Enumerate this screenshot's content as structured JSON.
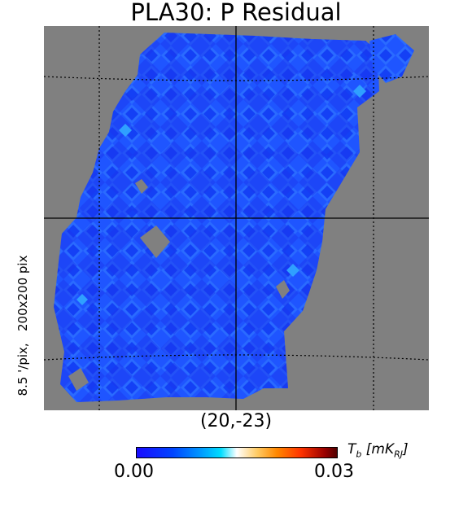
{
  "title": "PLA30: P Residual",
  "side_label": "8.5 '/pix,   200x200 pix",
  "center_coord": "(20,-23)",
  "colorbar": {
    "min_label": "0.00",
    "max_label": "0.03",
    "unit_prefix": "T",
    "unit_sub_b": "b",
    "unit_mid": " [mK",
    "unit_sub_rj": "RJ",
    "unit_suffix": "]"
  },
  "colors": {
    "background": "#808080",
    "map_blue": "#1a4dff",
    "map_blue_light": "#1e88ff",
    "map_blue_dark": "#1010f0"
  }
}
